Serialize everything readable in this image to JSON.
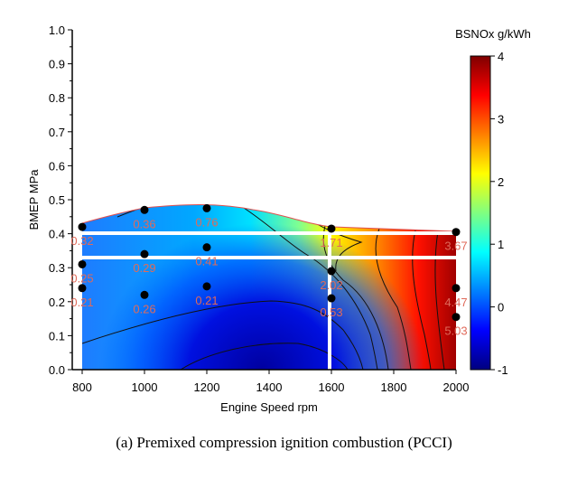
{
  "chart_data": {
    "type": "heatmap",
    "subtype": "filled contour",
    "xlabel": "Engine Speed  rpm",
    "ylabel": "BMEP  MPa",
    "xlim": [
      800,
      2000
    ],
    "ylim": [
      0.0,
      1.0
    ],
    "xticks": [
      "800",
      "1000",
      "1200",
      "1400",
      "1600",
      "1800",
      "2000"
    ],
    "yticks": [
      "0.0",
      "0.1",
      "0.2",
      "0.3",
      "0.4",
      "0.5",
      "0.6",
      "0.7",
      "0.8",
      "0.9",
      "1.0"
    ],
    "colorbar": {
      "title": "BSNOx g/kWh",
      "range": [
        -1,
        4
      ],
      "ticks": [
        "-1",
        "0",
        "1",
        "2",
        "3",
        "4"
      ],
      "colormap": [
        "#00007f",
        "#0000ff",
        "#0080ff",
        "#00ffff",
        "#80ff80",
        "#ffff00",
        "#ff8000",
        "#ff0000",
        "#7f0000"
      ]
    },
    "points": [
      {
        "x": 800,
        "y": 0.42,
        "label": "0.32"
      },
      {
        "x": 1000,
        "y": 0.47,
        "label": "0.36"
      },
      {
        "x": 1200,
        "y": 0.475,
        "label": "0.76"
      },
      {
        "x": 1600,
        "y": 0.415,
        "label": "1.71"
      },
      {
        "x": 2000,
        "y": 0.405,
        "label": "3.67"
      },
      {
        "x": 800,
        "y": 0.31,
        "label": "0.25"
      },
      {
        "x": 1000,
        "y": 0.34,
        "label": "0.29"
      },
      {
        "x": 1200,
        "y": 0.36,
        "label": "0.41"
      },
      {
        "x": 1600,
        "y": 0.29,
        "label": "2.02"
      },
      {
        "x": 800,
        "y": 0.24,
        "label": "0.21"
      },
      {
        "x": 1000,
        "y": 0.22,
        "label": "0.26"
      },
      {
        "x": 1200,
        "y": 0.245,
        "label": "0.21"
      },
      {
        "x": 1600,
        "y": 0.21,
        "label": "0.53"
      },
      {
        "x": 2000,
        "y": 0.24,
        "label": "4.47"
      },
      {
        "x": 2000,
        "y": 0.155,
        "label": "5.03"
      }
    ],
    "grid": false
  },
  "caption": "(a) Premixed compression ignition combustion (PCCI)"
}
